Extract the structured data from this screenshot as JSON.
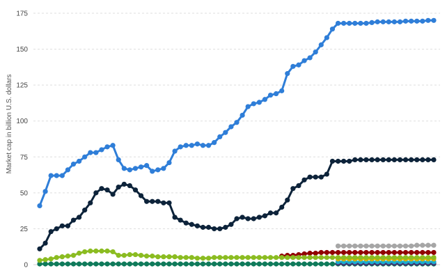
{
  "chart_data": {
    "type": "line",
    "title": "",
    "xlabel": "",
    "ylabel": "Market cap in billion U.S. dollars",
    "ylim": [
      0,
      175
    ],
    "yticks": [
      0,
      25,
      50,
      75,
      100,
      125,
      150,
      175
    ],
    "grid": "horizontal dashed",
    "legend": "none",
    "x": [
      1,
      2,
      3,
      4,
      5,
      6,
      7,
      8,
      9,
      10,
      11,
      12,
      13,
      14,
      15,
      16,
      17,
      18,
      19,
      20,
      21,
      22,
      23,
      24,
      25,
      26,
      27,
      28,
      29,
      30,
      31,
      32,
      33,
      34,
      35,
      36,
      37,
      38,
      39,
      40,
      41,
      42,
      43,
      44,
      45,
      46,
      47,
      48,
      49,
      50,
      51,
      52,
      53,
      54,
      55,
      56,
      57,
      58,
      59,
      60,
      61,
      62,
      63,
      64,
      65,
      66,
      67,
      68,
      69,
      70,
      71
    ],
    "series": [
      {
        "color": "#2f7ed8",
        "values": [
          41,
          51,
          62,
          62,
          62,
          66,
          70,
          72,
          75,
          78,
          78,
          80,
          82,
          83,
          73,
          67,
          66,
          67,
          68,
          69,
          65,
          66,
          67,
          71,
          79,
          82,
          83,
          83,
          84,
          83,
          83,
          85,
          89,
          92,
          96,
          99,
          104,
          110,
          112,
          113,
          115,
          118,
          119,
          121,
          133,
          138,
          139,
          142,
          144,
          148,
          153,
          158,
          164,
          168,
          168,
          168,
          168,
          168,
          168,
          168.5,
          169,
          169,
          169,
          169,
          169,
          169.5,
          169.5,
          169.5,
          169.5,
          170,
          170
        ]
      },
      {
        "color": "#0d233a",
        "values": [
          11,
          15,
          23,
          25,
          27,
          27,
          31,
          33,
          38,
          43,
          50,
          53,
          52,
          49,
          54,
          56,
          55,
          52,
          48,
          44,
          44,
          44,
          43,
          43,
          33,
          31,
          29,
          28,
          27,
          26,
          26,
          25,
          25,
          26,
          28,
          32,
          33,
          32,
          32,
          33,
          34,
          36,
          36,
          40,
          45,
          53,
          55,
          59,
          61,
          61,
          61,
          63,
          72,
          72,
          72,
          72,
          73,
          73,
          73,
          73,
          73,
          73,
          73,
          73,
          73,
          73,
          73,
          73,
          73,
          73,
          73
        ]
      },
      {
        "color": "#8bbc21",
        "values": [
          3,
          3.5,
          4,
          5,
          5.5,
          6,
          6.5,
          8,
          9,
          9.5,
          9.5,
          9.5,
          9.5,
          9,
          6.5,
          6.5,
          7,
          7,
          6.5,
          6,
          6,
          5.5,
          5.5,
          5.5,
          5.5,
          5,
          5,
          5,
          4.5,
          4.5,
          4.5,
          5,
          5,
          5,
          5,
          5,
          5,
          5,
          5,
          5,
          5,
          5,
          5,
          5,
          5,
          5,
          5,
          5,
          5,
          5,
          5,
          5,
          5,
          5,
          5,
          5,
          5,
          5,
          5,
          5,
          5,
          5,
          5,
          5,
          5,
          5,
          5,
          5,
          5,
          5,
          5
        ]
      },
      {
        "color": "#a6a6a6",
        "values": [
          null,
          null,
          null,
          null,
          null,
          null,
          null,
          null,
          null,
          null,
          null,
          null,
          null,
          null,
          null,
          null,
          null,
          null,
          null,
          null,
          null,
          null,
          null,
          null,
          null,
          null,
          null,
          null,
          null,
          null,
          null,
          null,
          null,
          null,
          null,
          null,
          null,
          null,
          null,
          null,
          null,
          null,
          null,
          null,
          null,
          null,
          null,
          null,
          null,
          null,
          null,
          null,
          null,
          13,
          13,
          13,
          13,
          13,
          13,
          13,
          13,
          13,
          13,
          13,
          13,
          13,
          13,
          13.5,
          13.5,
          13.5,
          13.5
        ]
      },
      {
        "color": "#910000",
        "values": [
          null,
          null,
          null,
          null,
          null,
          null,
          null,
          null,
          null,
          null,
          null,
          null,
          null,
          null,
          null,
          null,
          null,
          null,
          null,
          null,
          null,
          null,
          null,
          null,
          null,
          null,
          null,
          null,
          null,
          null,
          null,
          null,
          null,
          null,
          null,
          null,
          null,
          null,
          null,
          null,
          null,
          null,
          null,
          6,
          6.5,
          6.5,
          7,
          7.5,
          8,
          8,
          8.5,
          8.5,
          8.5,
          8.5,
          8.5,
          8.5,
          8.5,
          8.5,
          8.5,
          8.5,
          8.5,
          8.5,
          8.5,
          8.5,
          8.5,
          8.5,
          8.5,
          8.5,
          8.5,
          8.5,
          8.5
        ]
      },
      {
        "color": "#d9b100",
        "values": [
          null,
          null,
          null,
          null,
          null,
          null,
          null,
          null,
          null,
          null,
          null,
          null,
          null,
          null,
          null,
          null,
          null,
          null,
          null,
          null,
          null,
          null,
          null,
          null,
          null,
          null,
          null,
          null,
          null,
          null,
          null,
          null,
          null,
          null,
          null,
          null,
          null,
          null,
          null,
          null,
          null,
          null,
          null,
          null,
          null,
          null,
          null,
          null,
          null,
          null,
          null,
          null,
          null,
          4,
          4,
          4,
          4,
          4,
          4,
          4,
          4,
          4,
          4,
          4,
          4,
          4,
          4,
          4,
          4,
          4,
          4
        ]
      },
      {
        "color": "#1aadce",
        "values": [
          null,
          null,
          null,
          null,
          null,
          null,
          null,
          null,
          null,
          null,
          null,
          null,
          null,
          null,
          null,
          null,
          null,
          null,
          null,
          null,
          null,
          null,
          null,
          null,
          null,
          null,
          null,
          null,
          null,
          null,
          null,
          null,
          null,
          null,
          null,
          null,
          null,
          null,
          null,
          null,
          null,
          null,
          null,
          null,
          null,
          null,
          null,
          null,
          null,
          null,
          null,
          null,
          null,
          2,
          2,
          2,
          2,
          2,
          2,
          2,
          2,
          2,
          2,
          2,
          2,
          2,
          2,
          2,
          2,
          2,
          2
        ]
      },
      {
        "color": "#492970",
        "values": [
          null,
          null,
          null,
          null,
          null,
          null,
          null,
          null,
          null,
          null,
          null,
          null,
          null,
          null,
          null,
          null,
          null,
          null,
          null,
          null,
          null,
          null,
          null,
          null,
          null,
          null,
          null,
          null,
          null,
          null,
          null,
          null,
          null,
          null,
          null,
          null,
          null,
          null,
          null,
          null,
          null,
          null,
          null,
          null,
          null,
          null,
          null,
          null,
          null,
          null,
          null,
          null,
          null,
          1,
          1,
          1,
          1,
          1,
          1,
          1,
          1,
          1,
          1,
          1,
          1,
          1,
          1,
          1,
          1,
          1,
          1
        ]
      },
      {
        "color": "#0f7a5a",
        "values": [
          0.5,
          0.5,
          0.5,
          0.5,
          0.5,
          0.5,
          0.5,
          0.5,
          0.5,
          0.5,
          0.5,
          0.5,
          0.5,
          0.5,
          0.5,
          0.5,
          0.5,
          0.5,
          0.5,
          0.5,
          0.5,
          0.5,
          0.5,
          0.5,
          0.5,
          0.5,
          0.5,
          0.5,
          0.5,
          0.5,
          0.5,
          0.5,
          0.5,
          0.5,
          0.5,
          0.5,
          0.5,
          0.5,
          0.5,
          0.5,
          0.5,
          0.5,
          0.5,
          0.5,
          0.5,
          0.5,
          0.5,
          0.5,
          0.5,
          0.5,
          0.5,
          0.5,
          0.5,
          0.5,
          0.5,
          0.5,
          0.5,
          0.5,
          0.5,
          0.5,
          0.5,
          0.5,
          0.5,
          0.5,
          0.5,
          0.5,
          0.5,
          0.5,
          0.5,
          0.5,
          0.5
        ]
      }
    ]
  }
}
